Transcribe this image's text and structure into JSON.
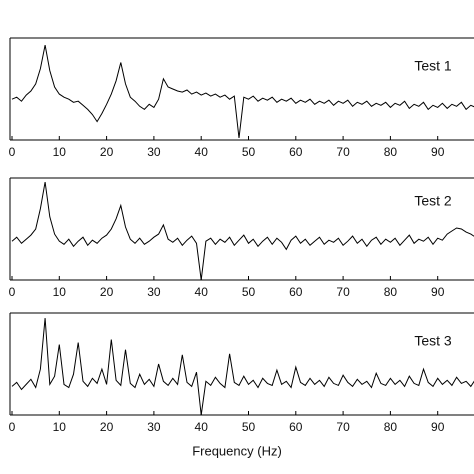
{
  "chart_data": [
    {
      "type": "line",
      "annotation": "Test 1",
      "color": "#000000",
      "xlim": [
        0,
        98
      ],
      "ylim": [
        0,
        100
      ],
      "xticks": [
        0,
        10,
        20,
        30,
        40,
        50,
        60,
        70,
        80,
        90
      ],
      "x": [
        0,
        1,
        2,
        3,
        4,
        5,
        6,
        7,
        8,
        9,
        10,
        11,
        12,
        13,
        14,
        15,
        16,
        17,
        18,
        19,
        20,
        21,
        22,
        23,
        24,
        25,
        26,
        27,
        28,
        29,
        30,
        31,
        32,
        33,
        34,
        35,
        36,
        37,
        38,
        39,
        40,
        41,
        42,
        43,
        44,
        45,
        46,
        47,
        48,
        49,
        50,
        51,
        52,
        53,
        54,
        55,
        56,
        57,
        58,
        59,
        60,
        61,
        62,
        63,
        64,
        65,
        66,
        67,
        68,
        69,
        70,
        71,
        72,
        73,
        74,
        75,
        76,
        77,
        78,
        79,
        80,
        81,
        82,
        83,
        84,
        85,
        86,
        87,
        88,
        89,
        90,
        91,
        92,
        93,
        94,
        95,
        96,
        97,
        98
      ],
      "values": [
        40,
        42,
        38,
        44,
        48,
        55,
        70,
        93,
        68,
        52,
        45,
        42,
        40,
        37,
        38,
        34,
        30,
        25,
        18,
        26,
        35,
        45,
        58,
        76,
        55,
        42,
        38,
        33,
        30,
        35,
        32,
        40,
        60,
        52,
        50,
        48,
        47,
        49,
        45,
        47,
        44,
        46,
        43,
        45,
        42,
        44,
        40,
        43,
        2,
        42,
        40,
        43,
        38,
        41,
        39,
        42,
        37,
        40,
        38,
        41,
        36,
        39,
        37,
        40,
        35,
        38,
        36,
        39,
        34,
        38,
        36,
        39,
        33,
        37,
        35,
        38,
        33,
        36,
        34,
        37,
        32,
        36,
        34,
        38,
        31,
        35,
        33,
        37,
        30,
        34,
        32,
        36,
        31,
        35,
        33,
        37,
        30,
        34,
        32
      ]
    },
    {
      "type": "line",
      "annotation": "Test 2",
      "color": "#000000",
      "xlim": [
        0,
        98
      ],
      "ylim": [
        0,
        100
      ],
      "xticks": [
        0,
        10,
        20,
        30,
        40,
        50,
        60,
        70,
        80,
        90
      ],
      "x": [
        0,
        1,
        2,
        3,
        4,
        5,
        6,
        7,
        8,
        9,
        10,
        11,
        12,
        13,
        14,
        15,
        16,
        17,
        18,
        19,
        20,
        21,
        22,
        23,
        24,
        25,
        26,
        27,
        28,
        29,
        30,
        31,
        32,
        33,
        34,
        35,
        36,
        37,
        38,
        39,
        40,
        41,
        42,
        43,
        44,
        45,
        46,
        47,
        48,
        49,
        50,
        51,
        52,
        53,
        54,
        55,
        56,
        57,
        58,
        59,
        60,
        61,
        62,
        63,
        64,
        65,
        66,
        67,
        68,
        69,
        70,
        71,
        72,
        73,
        74,
        75,
        76,
        77,
        78,
        79,
        80,
        81,
        82,
        83,
        84,
        85,
        86,
        87,
        88,
        89,
        90,
        91,
        92,
        93,
        94,
        95,
        96,
        97,
        98
      ],
      "values": [
        38,
        42,
        36,
        40,
        44,
        50,
        70,
        96,
        62,
        45,
        38,
        35,
        40,
        33,
        38,
        42,
        34,
        39,
        36,
        41,
        44,
        50,
        60,
        73,
        52,
        40,
        36,
        41,
        35,
        38,
        42,
        45,
        54,
        40,
        37,
        41,
        34,
        39,
        43,
        36,
        0,
        38,
        41,
        35,
        40,
        37,
        42,
        34,
        39,
        44,
        36,
        40,
        33,
        38,
        42,
        35,
        41,
        37,
        30,
        39,
        43,
        36,
        40,
        34,
        38,
        42,
        35,
        39,
        37,
        41,
        34,
        38,
        43,
        36,
        40,
        33,
        39,
        42,
        35,
        40,
        37,
        41,
        34,
        39,
        44,
        36,
        40,
        38,
        42,
        35,
        41,
        39,
        45,
        48,
        51,
        50,
        47,
        45,
        42
      ]
    },
    {
      "type": "line",
      "annotation": "Test 3",
      "xlabel": "Frequency (Hz)",
      "color": "#000000",
      "xlim": [
        0,
        98
      ],
      "ylim": [
        0,
        100
      ],
      "xticks": [
        0,
        10,
        20,
        30,
        40,
        50,
        60,
        70,
        80,
        90
      ],
      "x": [
        0,
        1,
        2,
        3,
        4,
        5,
        6,
        7,
        8,
        9,
        10,
        11,
        12,
        13,
        14,
        15,
        16,
        17,
        18,
        19,
        20,
        21,
        22,
        23,
        24,
        25,
        26,
        27,
        28,
        29,
        30,
        31,
        32,
        33,
        34,
        35,
        36,
        37,
        38,
        39,
        40,
        41,
        42,
        43,
        44,
        45,
        46,
        47,
        48,
        49,
        50,
        51,
        52,
        53,
        54,
        55,
        56,
        57,
        58,
        59,
        60,
        61,
        62,
        63,
        64,
        65,
        66,
        67,
        68,
        69,
        70,
        71,
        72,
        73,
        74,
        75,
        76,
        77,
        78,
        79,
        80,
        81,
        82,
        83,
        84,
        85,
        86,
        87,
        88,
        89,
        90,
        91,
        92,
        93,
        94,
        95,
        96,
        97,
        98
      ],
      "values": [
        28,
        32,
        25,
        30,
        35,
        27,
        45,
        95,
        30,
        38,
        69,
        30,
        27,
        40,
        71,
        33,
        28,
        36,
        31,
        45,
        30,
        74,
        34,
        29,
        64,
        31,
        27,
        40,
        30,
        35,
        28,
        50,
        33,
        29,
        36,
        30,
        59,
        32,
        28,
        42,
        0,
        33,
        29,
        37,
        31,
        27,
        60,
        32,
        29,
        38,
        30,
        34,
        27,
        36,
        31,
        29,
        44,
        30,
        33,
        27,
        47,
        32,
        29,
        36,
        30,
        34,
        28,
        37,
        31,
        29,
        39,
        32,
        28,
        35,
        30,
        33,
        27,
        41,
        31,
        29,
        36,
        30,
        34,
        28,
        38,
        31,
        29,
        45,
        32,
        28,
        36,
        30,
        34,
        29,
        37,
        31,
        33,
        28,
        35
      ]
    }
  ]
}
